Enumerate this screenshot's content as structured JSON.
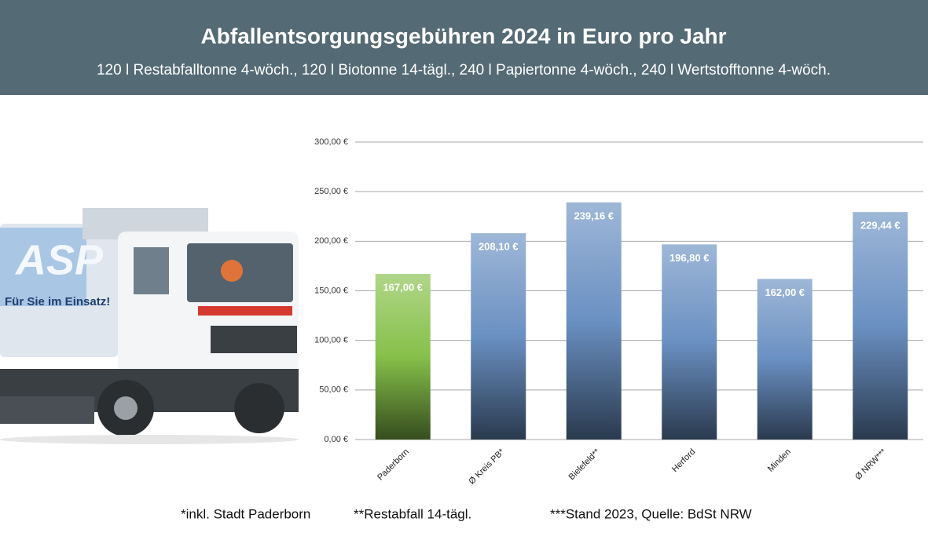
{
  "chart_data": {
    "type": "bar",
    "title": "Abfallentsorgungsgebühren 2024 in Euro pro Jahr",
    "subtitle": "120 l Restabfalltonne 4-wöch., 120 l Biotonne 14-tägl., 240 l Papiertonne 4-wöch., 240 l Wertstofftonne 4-wöch.",
    "categories": [
      "Paderborn",
      "Ø Kreis PB*",
      "Bielefeld**",
      "Herford",
      "Minden",
      "Ø NRW***"
    ],
    "values": [
      167.0,
      208.1,
      239.16,
      196.8,
      162.0,
      229.44
    ],
    "value_labels": [
      "167,00 €",
      "208,10 €",
      "239,16 €",
      "196,80 €",
      "162,00 €",
      "229,44 €"
    ],
    "colors": [
      "#86c04a",
      "#6a90c2",
      "#6a90c2",
      "#6a90c2",
      "#6a90c2",
      "#6a90c2"
    ],
    "ylim": [
      0,
      300
    ],
    "yticks": [
      {
        "value": 0,
        "label": "0,00 €"
      },
      {
        "value": 50,
        "label": "50,00 €"
      },
      {
        "value": 100,
        "label": "100,00 €"
      },
      {
        "value": 150,
        "label": "150,00 €"
      },
      {
        "value": 200,
        "label": "200,00 €"
      },
      {
        "value": 250,
        "label": "250,00 €"
      },
      {
        "value": 300,
        "label": "300,00 €"
      }
    ],
    "grid": true,
    "footnotes": [
      "*inkl. Stadt Paderborn",
      "**Restabfall 14-tägl.",
      "***Stand 2023, Quelle: BdSt NRW"
    ]
  }
}
